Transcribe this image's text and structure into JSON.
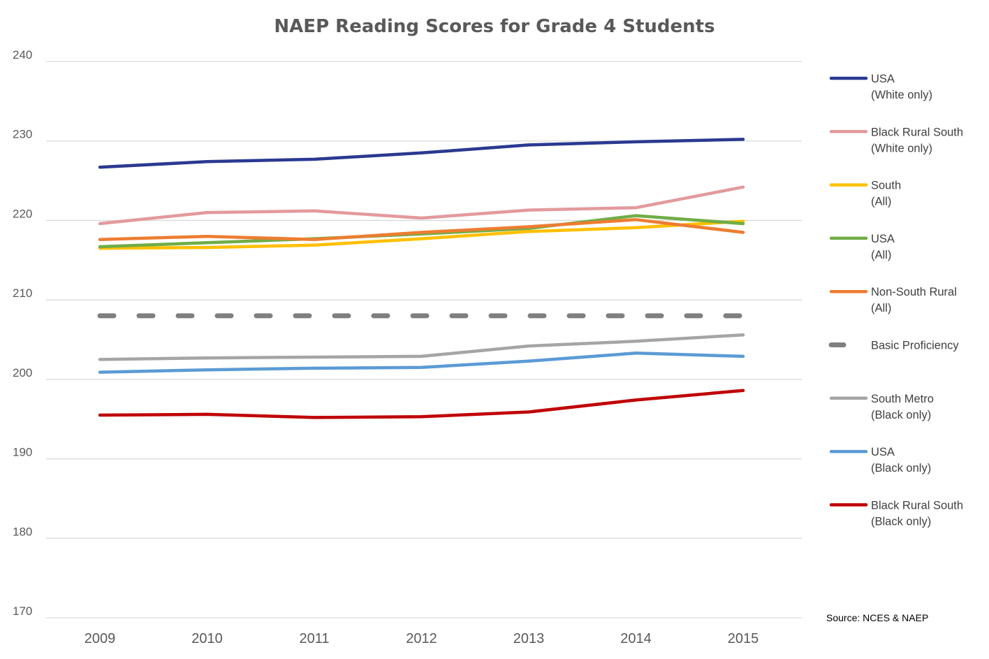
{
  "chart_data": {
    "type": "line",
    "title": "NAEP Reading Scores for Grade 4 Students",
    "xlabel": "",
    "ylabel": "",
    "x": [
      "2009",
      "2010",
      "2011",
      "2012",
      "2013",
      "2014",
      "2015"
    ],
    "ylim": [
      170,
      240
    ],
    "yticks": [
      240,
      230,
      220,
      210,
      200,
      190,
      180,
      170
    ],
    "grid": true,
    "legend_position": "right",
    "series": [
      {
        "name_line1": "USA",
        "name_line2": "(White only)",
        "color": "#2b3990",
        "dashed": false,
        "values": [
          226.7,
          227.4,
          227.7,
          228.5,
          229.5,
          229.9,
          230.2
        ]
      },
      {
        "name_line1": "Black Rural South",
        "name_line2": "(White only)",
        "color": "#e39a9d",
        "dashed": false,
        "values": [
          219.6,
          221.0,
          221.2,
          220.3,
          221.3,
          221.6,
          224.2
        ]
      },
      {
        "name_line1": "South",
        "name_line2": "(All)",
        "color": "#ffc000",
        "dashed": false,
        "values": [
          216.5,
          216.6,
          216.9,
          217.7,
          218.6,
          219.1,
          219.9
        ]
      },
      {
        "name_line1": "USA",
        "name_line2": "(All)",
        "color": "#70ad47",
        "dashed": false,
        "values": [
          216.7,
          217.2,
          217.7,
          218.3,
          219.0,
          220.6,
          219.6
        ]
      },
      {
        "name_line1": "Non-South Rural",
        "name_line2": "(All)",
        "color": "#ed7d31",
        "dashed": false,
        "values": [
          217.6,
          218.0,
          217.6,
          218.5,
          219.2,
          220.1,
          218.5
        ]
      },
      {
        "name_line1": "Basic Proficiency",
        "name_line2": "",
        "color": "#7f7f7f",
        "dashed": true,
        "values": [
          208,
          208,
          208,
          208,
          208,
          208,
          208
        ]
      },
      {
        "name_line1": "South Metro",
        "name_line2": "(Black only)",
        "color": "#a5a5a5",
        "dashed": false,
        "values": [
          202.5,
          202.7,
          202.8,
          202.9,
          204.2,
          204.8,
          205.6
        ]
      },
      {
        "name_line1": "USA",
        "name_line2": "(Black only)",
        "color": "#5b9bd5",
        "dashed": false,
        "values": [
          200.9,
          201.2,
          201.4,
          201.5,
          202.3,
          203.3,
          202.9
        ]
      },
      {
        "name_line1": "Black Rural South",
        "name_line2": "(Black only)",
        "color": "#c00000",
        "dashed": false,
        "values": [
          195.5,
          195.6,
          195.2,
          195.3,
          195.9,
          197.4,
          198.6
        ]
      }
    ],
    "source": "Source: NCES & NAEP"
  }
}
